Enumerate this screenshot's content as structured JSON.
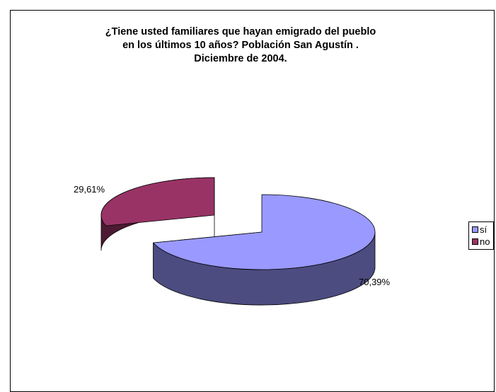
{
  "chart_data": {
    "type": "pie",
    "title_lines": [
      "¿Tiene usted familiares que hayan emigrado del pueblo",
      "en los últimos 10 años? Población San Agustín .",
      "Diciembre de 2004."
    ],
    "categories": [
      "sí",
      "no"
    ],
    "values": [
      70.39,
      29.61
    ],
    "value_labels": [
      "70,39%",
      "29,61%"
    ],
    "colors": [
      "#9999ff",
      "#993366"
    ],
    "side_colors": [
      "#4c4c80",
      "#4d1a33"
    ],
    "style": "3d-exploded",
    "legend_position": "right"
  },
  "legend": {
    "items": [
      {
        "label": "sí",
        "color": "#9999ff"
      },
      {
        "label": "no",
        "color": "#993366"
      }
    ]
  }
}
